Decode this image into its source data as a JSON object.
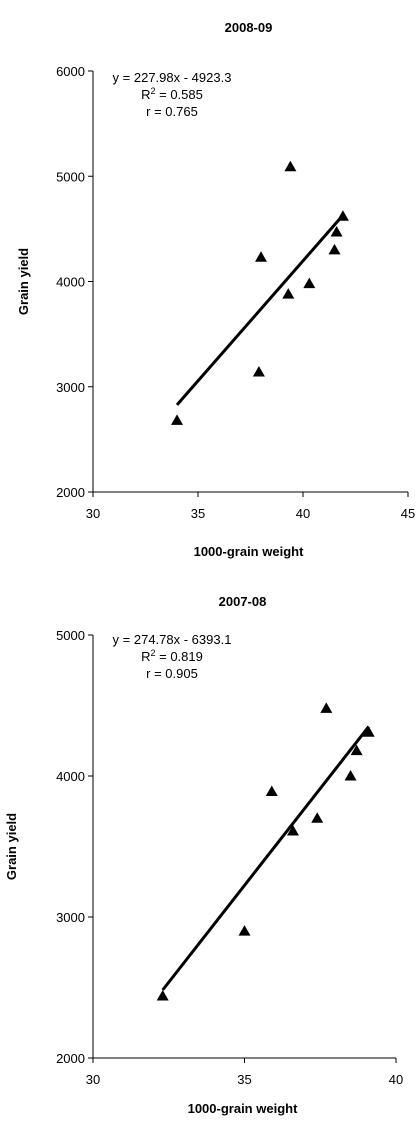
{
  "chart_data": [
    {
      "type": "scatter",
      "title": "2008-09",
      "xlabel": "1000-grain weight",
      "ylabel": "Grain yield",
      "xlim": [
        30,
        45
      ],
      "ylim": [
        2000,
        6000
      ],
      "xticks": [
        "30",
        "35",
        "40",
        "45"
      ],
      "yticks": [
        "2000",
        "3000",
        "4000",
        "5000",
        "6000"
      ],
      "marker": "triangle",
      "points": [
        {
          "x": 34.0,
          "y": 2680
        },
        {
          "x": 37.9,
          "y": 3140
        },
        {
          "x": 38.0,
          "y": 4230
        },
        {
          "x": 39.3,
          "y": 3880
        },
        {
          "x": 39.4,
          "y": 5090
        },
        {
          "x": 40.3,
          "y": 3980
        },
        {
          "x": 41.5,
          "y": 4300
        },
        {
          "x": 41.6,
          "y": 4470
        },
        {
          "x": 41.9,
          "y": 4620
        }
      ],
      "trendline": {
        "slope": 227.98,
        "intercept": -4923.3,
        "x_range": [
          34.0,
          41.9
        ]
      },
      "equation": {
        "line": "y = 227.98x  - 4923.3",
        "r2_prefix": "R",
        "r2_sup": "2",
        "r2_value": " = 0.585",
        "r": "r = 0.765"
      },
      "grid": false
    },
    {
      "type": "scatter",
      "title": "2007-08",
      "xlabel": "1000-grain weight",
      "ylabel": "Grain yield",
      "xlim": [
        30,
        40
      ],
      "ylim": [
        2000,
        5000
      ],
      "xticks": [
        "30",
        "35",
        "40"
      ],
      "yticks": [
        "2000",
        "3000",
        "4000",
        "5000"
      ],
      "marker": "triangle",
      "points": [
        {
          "x": 32.3,
          "y": 2440
        },
        {
          "x": 35.0,
          "y": 2900
        },
        {
          "x": 35.9,
          "y": 3890
        },
        {
          "x": 36.6,
          "y": 3610
        },
        {
          "x": 37.4,
          "y": 3700
        },
        {
          "x": 37.7,
          "y": 4480
        },
        {
          "x": 38.5,
          "y": 4000
        },
        {
          "x": 38.7,
          "y": 4180
        },
        {
          "x": 39.1,
          "y": 4310
        }
      ],
      "trendline": {
        "slope": 274.78,
        "intercept": -6393.1,
        "x_range": [
          32.3,
          39.1
        ]
      },
      "equation": {
        "line": "y = 274.78x  - 6393.1",
        "r2_prefix": "R",
        "r2_sup": "2",
        "r2_value": " = 0.819",
        "r": "r = 0.905"
      },
      "grid": false
    }
  ]
}
